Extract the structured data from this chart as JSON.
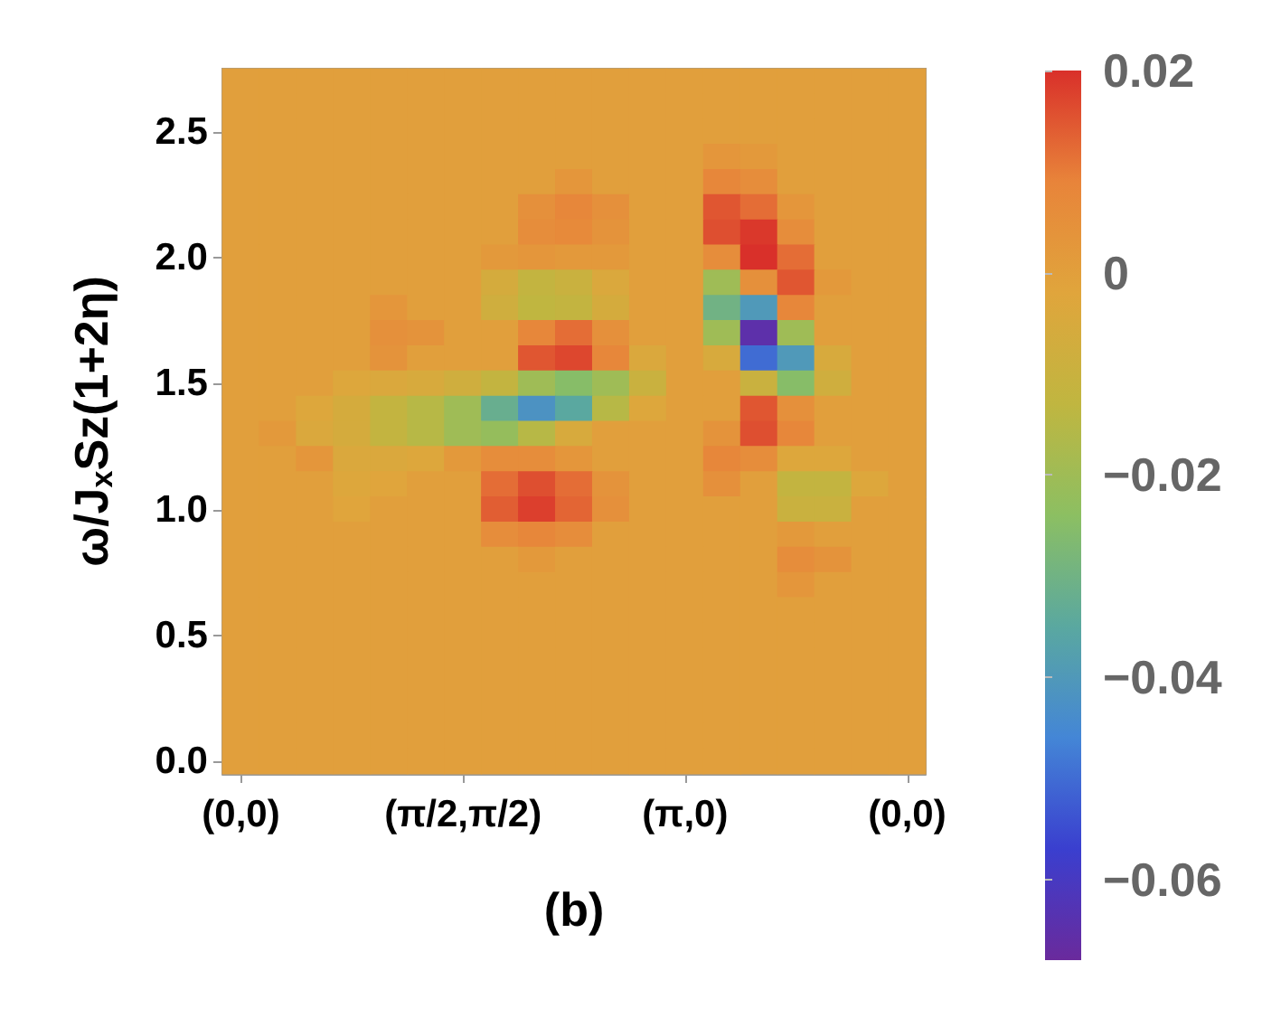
{
  "chart_data": {
    "type": "heatmap",
    "xlabel": "(b)",
    "ylabel": "ω/J$_{x}$Sz(1+2η)",
    "categories": [
      "(0,0)",
      null,
      null,
      null,
      null,
      null,
      "(π/2,π/2)",
      null,
      null,
      null,
      null,
      null,
      "(π,0)",
      null,
      null,
      null,
      null,
      null,
      "(0,0)"
    ],
    "y_categories": [
      null,
      null,
      "2.5",
      null,
      null,
      null,
      null,
      "2.0",
      null,
      null,
      null,
      null,
      "1.5",
      null,
      null,
      null,
      null,
      "1.0",
      null,
      null,
      null,
      null,
      "0.5",
      null,
      null,
      null,
      null,
      "0.0"
    ],
    "cells": [
      [
        0,
        0,
        0,
        0,
        0,
        0,
        0,
        0,
        0,
        0,
        0,
        0,
        0,
        0,
        0,
        0,
        0,
        0,
        0
      ],
      [
        0,
        0,
        0,
        0,
        0,
        0,
        0,
        0,
        0,
        0,
        0,
        0,
        0,
        0,
        0,
        0,
        0,
        0,
        0
      ],
      [
        0,
        0,
        0,
        0,
        0,
        0,
        0,
        0,
        0,
        0,
        0,
        0,
        0,
        0,
        0,
        0,
        0,
        0,
        0
      ],
      [
        0,
        0,
        0,
        0,
        0,
        0,
        0,
        0,
        0,
        0,
        0,
        0,
        0,
        0.003,
        0.002,
        0,
        0,
        0,
        0
      ],
      [
        0,
        0,
        0,
        0,
        0,
        0,
        0,
        0,
        0,
        0.003,
        0,
        0,
        0,
        0.008,
        0.006,
        0,
        0,
        0,
        0
      ],
      [
        0,
        0,
        0,
        0,
        0,
        0,
        0,
        0,
        0.005,
        0.008,
        0.005,
        0,
        0,
        0.015,
        0.012,
        0.003,
        0,
        0,
        0
      ],
      [
        0,
        0,
        0,
        0,
        0,
        0,
        0,
        0,
        0.006,
        0.007,
        0.004,
        0,
        0,
        0.016,
        0.019,
        0.006,
        0,
        0,
        0
      ],
      [
        0,
        0,
        0,
        0,
        0,
        0,
        0,
        0.002,
        0.003,
        0.002,
        0.002,
        0,
        0,
        0.006,
        0.02,
        0.012,
        0,
        0,
        0
      ],
      [
        0,
        0,
        0,
        0,
        0,
        0,
        0,
        -0.006,
        -0.012,
        -0.01,
        -0.004,
        0,
        0,
        -0.02,
        0.005,
        0.015,
        0.002,
        0,
        0
      ],
      [
        0,
        0,
        0,
        0,
        0.003,
        0,
        0,
        -0.008,
        -0.013,
        -0.012,
        -0.006,
        0,
        0,
        -0.03,
        -0.04,
        0.008,
        0,
        0,
        0
      ],
      [
        0,
        0,
        0,
        0,
        0.005,
        0.004,
        0,
        0,
        0.008,
        0.012,
        0.005,
        0,
        0,
        -0.02,
        -0.065,
        -0.02,
        0,
        0,
        0
      ],
      [
        0,
        0,
        0,
        0,
        0.004,
        0,
        0,
        0,
        0.015,
        0.017,
        0.008,
        -0.004,
        0,
        -0.005,
        -0.05,
        -0.04,
        -0.005,
        0,
        0
      ],
      [
        0,
        0,
        0,
        -0.003,
        -0.004,
        -0.005,
        -0.008,
        -0.012,
        -0.02,
        -0.025,
        -0.02,
        -0.01,
        0,
        0,
        -0.01,
        -0.025,
        -0.008,
        0,
        0
      ],
      [
        0,
        0,
        -0.003,
        -0.006,
        -0.012,
        -0.015,
        -0.02,
        -0.032,
        -0.042,
        -0.035,
        -0.015,
        -0.003,
        0,
        0,
        0.015,
        0.005,
        0,
        0,
        0
      ],
      [
        0,
        0.002,
        -0.004,
        -0.006,
        -0.012,
        -0.015,
        -0.02,
        -0.022,
        -0.015,
        -0.005,
        0,
        0,
        0,
        0.004,
        0.016,
        0.008,
        0,
        0,
        0
      ],
      [
        0,
        0,
        0.003,
        -0.004,
        -0.004,
        -0.003,
        0.002,
        0.006,
        0.006,
        0.003,
        0,
        0,
        0,
        0.008,
        0.006,
        -0.003,
        -0.003,
        0,
        0
      ],
      [
        0,
        0,
        0,
        -0.003,
        -0.002,
        0,
        0,
        0.012,
        0.016,
        0.012,
        0.004,
        0,
        0,
        0.005,
        0,
        -0.012,
        -0.012,
        -0.003,
        0
      ],
      [
        0,
        0,
        0,
        -0.002,
        0,
        0,
        0,
        0.014,
        0.018,
        0.013,
        0.005,
        0,
        0,
        0,
        0,
        -0.01,
        -0.01,
        0,
        0
      ],
      [
        0,
        0,
        0,
        0,
        0,
        0,
        0,
        0.006,
        0.008,
        0.006,
        0,
        0,
        0,
        0,
        0,
        0.002,
        0,
        0,
        0
      ],
      [
        0,
        0,
        0,
        0,
        0,
        0,
        0,
        0,
        0.002,
        0,
        0,
        0,
        0,
        0,
        0,
        0.006,
        0.004,
        0,
        0
      ],
      [
        0,
        0,
        0,
        0,
        0,
        0,
        0,
        0,
        0,
        0,
        0,
        0,
        0,
        0,
        0,
        0.003,
        0,
        0,
        0
      ],
      [
        0,
        0,
        0,
        0,
        0,
        0,
        0,
        0,
        0,
        0,
        0,
        0,
        0,
        0,
        0,
        0,
        0,
        0,
        0
      ],
      [
        0,
        0,
        0,
        0,
        0,
        0,
        0,
        0,
        0,
        0,
        0,
        0,
        0,
        0,
        0,
        0,
        0,
        0,
        0
      ],
      [
        0,
        0,
        0,
        0,
        0,
        0,
        0,
        0,
        0,
        0,
        0,
        0,
        0,
        0,
        0,
        0,
        0,
        0,
        0
      ],
      [
        0,
        0,
        0,
        0,
        0,
        0,
        0,
        0,
        0,
        0,
        0,
        0,
        0,
        0,
        0,
        0,
        0,
        0,
        0
      ],
      [
        0,
        0,
        0,
        0,
        0,
        0,
        0,
        0,
        0,
        0,
        0,
        0,
        0,
        0,
        0,
        0,
        0,
        0,
        0
      ],
      [
        0,
        0,
        0,
        0,
        0,
        0,
        0,
        0,
        0,
        0,
        0,
        0,
        0,
        0,
        0,
        0,
        0,
        0,
        0
      ],
      [
        0,
        0,
        0,
        0,
        0,
        0,
        0,
        0,
        0,
        0,
        0,
        0,
        0,
        0,
        0,
        0,
        0,
        0,
        0
      ]
    ],
    "clim": [
      -0.068,
      0.02
    ],
    "cticks": [
      0.02,
      0,
      {
        "value": -0.02,
        "label": "−0.02"
      },
      {
        "value": -0.04,
        "label": "−0.04"
      },
      {
        "value": -0.06,
        "label": "−0.06"
      }
    ],
    "grid": false
  }
}
